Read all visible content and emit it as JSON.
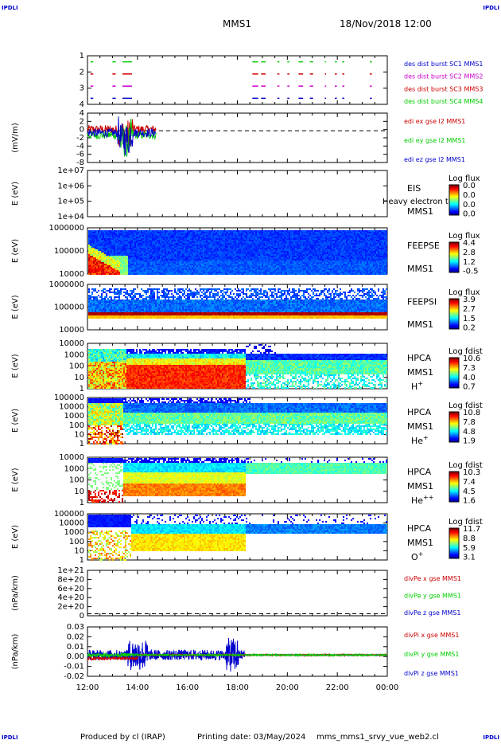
{
  "corners": {
    "tl": "IPDLI",
    "tr": "IPDLI",
    "bl": "IPDLI",
    "br": "IPDLI"
  },
  "header": {
    "spacecraft": "MMS1",
    "datetime": "18/Nov/2018 12:00"
  },
  "footer": {
    "producer": "Produced by cl (IRAP)",
    "printing_date": "Printing date: 03/May/2024",
    "script_name": "mms_mms1_srvy_vue_web2.cl"
  },
  "time_axis": {
    "ticks": [
      "12:00",
      "14:00",
      "16:00",
      "18:00",
      "20:00",
      "22:00",
      "00:00"
    ],
    "start_hour": 12,
    "end_hour": 24
  },
  "chart_data": [
    {
      "type": "scatter",
      "id": "burst",
      "yticks": [
        "1",
        "2",
        "3",
        "4"
      ],
      "ylim": [
        0.5,
        4.5
      ],
      "legend": [
        {
          "label": "des dist burst SC1 MMS1",
          "color": "#0000cc"
        },
        {
          "label": "des dist burst SC2 MMS2",
          "color": "#cc00cc"
        },
        {
          "label": "des dist burst SC3 MMS3",
          "color": "#cc0000"
        },
        {
          "label": "des dist burst SC4 MMS4",
          "color": "#00cc00"
        }
      ],
      "segments": [
        [
          12.12,
          12.2
        ],
        [
          13.0,
          13.1
        ],
        [
          13.4,
          13.75
        ],
        [
          18.6,
          18.8
        ],
        [
          18.95,
          19.1
        ],
        [
          19.6,
          19.65
        ],
        [
          20.0,
          20.05
        ],
        [
          20.45,
          20.6
        ],
        [
          20.9,
          21.0
        ],
        [
          21.5,
          21.52
        ],
        [
          21.9,
          21.95
        ],
        [
          22.2,
          22.25
        ],
        [
          23.3,
          23.35
        ]
      ]
    },
    {
      "type": "line",
      "id": "edi",
      "ylabel": "(mV/m)",
      "yticks": [
        "4",
        "2",
        "0",
        "-2",
        "-4",
        "-6",
        "-8"
      ],
      "ylim": [
        -9,
        5
      ],
      "dashed_zero": true,
      "legend": [
        {
          "label": "edi ex gse l2 MMS1",
          "color": "#cc0000"
        },
        {
          "label": "edi ey gse l2 MMS1",
          "color": "#00cc00"
        },
        {
          "label": "edi ez gse l2 MMS1",
          "color": "#0000cc"
        }
      ],
      "x_range": [
        12.0,
        14.75
      ]
    },
    {
      "type": "heatmap",
      "id": "eis",
      "ylabel": "E (eV)",
      "yticks": [
        "1e+07",
        "1e+06",
        "1e+05",
        "1e+04"
      ],
      "empty": true,
      "labels": [
        "EIS",
        "MMS1"
      ],
      "overlay_text": "Heavy electron to",
      "cbar_title": "Log flux",
      "cbar_values": [
        "0.0",
        "0.0",
        "0.0",
        "0.0"
      ]
    },
    {
      "type": "heatmap",
      "id": "feepse",
      "ylabel": "E (eV)",
      "yticks": [
        "1000000",
        "100000",
        "10000"
      ],
      "labels": [
        "FEEPSE",
        "MMS1"
      ],
      "cbar_title": "Log flux",
      "cbar_values": [
        "4.4",
        "2.8",
        "1.2",
        "-0.5"
      ]
    },
    {
      "type": "heatmap",
      "id": "feepsi",
      "ylabel": "E (eV)",
      "yticks": [
        "1000000",
        "100000",
        "10000"
      ],
      "labels": [
        "FEEPSI",
        "MMS1"
      ],
      "cbar_title": "Log flux",
      "cbar_values": [
        "3.9",
        "2.7",
        "1.5",
        "0.2"
      ]
    },
    {
      "type": "heatmap",
      "id": "hpca_h",
      "ylabel": "E (eV)",
      "yticks": [
        "10000",
        "1000",
        "100",
        "10",
        "1"
      ],
      "labels": [
        "HPCA",
        "MMS1"
      ],
      "species": "H",
      "charge": "+",
      "cbar_title": "Log fdist",
      "cbar_values": [
        "10.6",
        "7.3",
        "4.0",
        "0.7"
      ]
    },
    {
      "type": "heatmap",
      "id": "hpca_he",
      "ylabel": "E (eV)",
      "yticks": [
        "100000",
        "10000",
        "1000",
        "100",
        "10",
        "1"
      ],
      "labels": [
        "HPCA",
        "MMS1"
      ],
      "species": "He",
      "charge": "+",
      "cbar_title": "Log fdist",
      "cbar_values": [
        "10.8",
        "7.8",
        "4.8",
        "1.9"
      ]
    },
    {
      "type": "heatmap",
      "id": "hpca_hepp",
      "ylabel": "E (eV)",
      "yticks": [
        "10000",
        "1000",
        "100",
        "10",
        "1"
      ],
      "labels": [
        "HPCA",
        "MMS1"
      ],
      "species": "He",
      "charge": "++",
      "cbar_title": "Log fdist",
      "cbar_values": [
        "10.3",
        "7.4",
        "4.5",
        "1.6"
      ]
    },
    {
      "type": "heatmap",
      "id": "hpca_o",
      "ylabel": "E (eV)",
      "yticks": [
        "100000",
        "10000",
        "1000",
        "100",
        "10",
        "1"
      ],
      "labels": [
        "HPCA",
        "MMS1"
      ],
      "species": "O",
      "charge": "+",
      "cbar_title": "Log fdist",
      "cbar_values": [
        "11.7",
        "8.8",
        "5.9",
        "3.1"
      ]
    },
    {
      "type": "line",
      "id": "divpe",
      "ylabel": "(nPa/km)",
      "yticks": [
        "1e+21",
        "8e+20",
        "6e+20",
        "4e+20",
        "2e+20",
        "0"
      ],
      "ylim": [
        -5e+19,
        1.1e+21
      ],
      "dashed_zero": true,
      "legend": [
        {
          "label": "divPe x gse MMS1",
          "color": "#cc0000"
        },
        {
          "label": "divPe y gse MMS1",
          "color": "#00cc00"
        },
        {
          "label": "divPe z gse MMS1",
          "color": "#0000cc"
        }
      ]
    },
    {
      "type": "line",
      "id": "divpi",
      "ylabel": "(nPa/km)",
      "yticks": [
        "0.03",
        "0.02",
        "0.01",
        "0.00",
        "-0.01",
        "-0.02"
      ],
      "ylim": [
        -0.025,
        0.033
      ],
      "legend": [
        {
          "label": "divPi x gse MMS1",
          "color": "#cc0000"
        },
        {
          "label": "divPi y gse MMS1",
          "color": "#00cc00"
        },
        {
          "label": "divPi z gse MMS1",
          "color": "#0000cc"
        }
      ],
      "x_range": [
        12.0,
        24.0
      ]
    }
  ]
}
